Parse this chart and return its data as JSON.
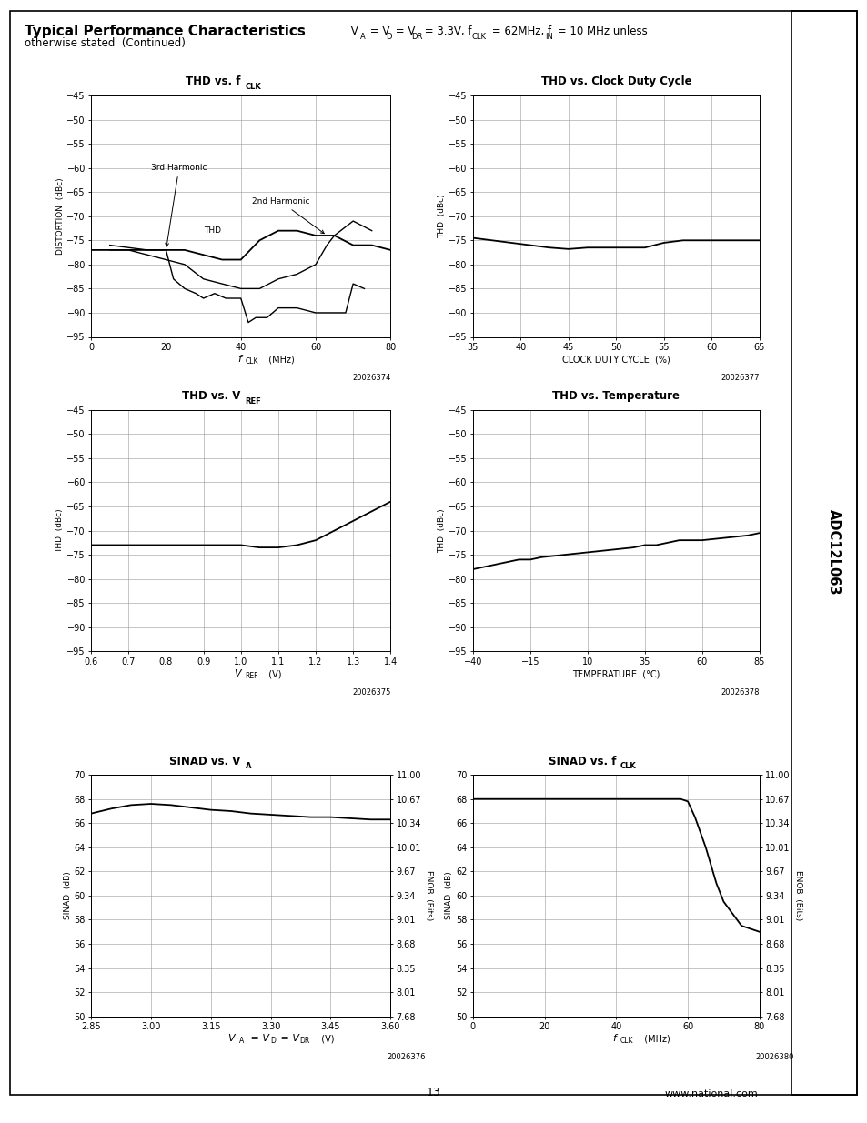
{
  "title_bold": "Typical Performance Characteristics",
  "subtitle_formula": " Vₐ = Vₑ = Vₑᴵ = 3.3V, f",
  "subtitle_clk_sub": "CLK",
  "subtitle_mid": " = 62MHz, f",
  "subtitle_in_sub": "IN",
  "subtitle_end": " = 10 MHz unless",
  "subtitle2": "otherwise stated  (Continued)",
  "page_num": "13",
  "chip_name": "ADC12L063",
  "website": "www.national.com",
  "thd_fclk": {
    "ylabel": "DISTORTION  (dBc)",
    "xmin": 0,
    "xmax": 80,
    "ymin": -95,
    "ymax": -45,
    "xticks": [
      0,
      20,
      40,
      60,
      80
    ],
    "yticks": [
      -95,
      -90,
      -85,
      -80,
      -75,
      -70,
      -65,
      -60,
      -55,
      -50,
      -45
    ],
    "thd_x": [
      0,
      5,
      10,
      15,
      20,
      25,
      30,
      35,
      40,
      45,
      50,
      55,
      60,
      65,
      70,
      75,
      80
    ],
    "thd_y": [
      -77,
      -77,
      -77,
      -77,
      -77,
      -77,
      -78,
      -79,
      -79,
      -75,
      -73,
      -73,
      -74,
      -74,
      -76,
      -76,
      -77
    ],
    "harm3_x": [
      5,
      15,
      20,
      22,
      25,
      28,
      30,
      33,
      36,
      38,
      40,
      42,
      44,
      47,
      50,
      55,
      60,
      63,
      65,
      68,
      70,
      73
    ],
    "harm3_y": [
      -76,
      -77,
      -77,
      -83,
      -85,
      -86,
      -87,
      -86,
      -87,
      -87,
      -87,
      -92,
      -91,
      -91,
      -89,
      -89,
      -90,
      -90,
      -90,
      -90,
      -84,
      -85
    ],
    "harm2_x": [
      5,
      10,
      15,
      20,
      25,
      30,
      35,
      40,
      45,
      50,
      55,
      60,
      63,
      65,
      70,
      75
    ],
    "harm2_y": [
      -77,
      -77,
      -78,
      -79,
      -80,
      -83,
      -84,
      -85,
      -85,
      -83,
      -82,
      -80,
      -76,
      -74,
      -71,
      -73
    ],
    "code": "20026374"
  },
  "thd_duty": {
    "ylabel": "THD  (dBc)",
    "xlabel": "CLOCK DUTY CYCLE  (%)",
    "xmin": 35,
    "xmax": 65,
    "ymin": -95,
    "ymax": -45,
    "xticks": [
      35,
      40,
      45,
      50,
      55,
      60,
      65
    ],
    "yticks": [
      -95,
      -90,
      -85,
      -80,
      -75,
      -70,
      -65,
      -60,
      -55,
      -50,
      -45
    ],
    "x": [
      35,
      37,
      39,
      41,
      43,
      45,
      47,
      49,
      51,
      53,
      55,
      57,
      59,
      61,
      63,
      65
    ],
    "y": [
      -74.5,
      -75.0,
      -75.5,
      -76.0,
      -76.5,
      -76.8,
      -76.5,
      -76.5,
      -76.5,
      -76.5,
      -75.5,
      -75.0,
      -75.0,
      -75.0,
      -75.0,
      -75.0
    ],
    "code": "20026377"
  },
  "thd_vref": {
    "ylabel": "THD  (dBc)",
    "xmin": 0.6,
    "xmax": 1.4,
    "ymin": -95,
    "ymax": -45,
    "xticks": [
      0.6,
      0.7,
      0.8,
      0.9,
      1.0,
      1.1,
      1.2,
      1.3,
      1.4
    ],
    "yticks": [
      -95,
      -90,
      -85,
      -80,
      -75,
      -70,
      -65,
      -60,
      -55,
      -50,
      -45
    ],
    "x": [
      0.6,
      0.65,
      0.7,
      0.75,
      0.8,
      0.85,
      0.9,
      0.95,
      1.0,
      1.05,
      1.1,
      1.15,
      1.2,
      1.25,
      1.3,
      1.35,
      1.4
    ],
    "y": [
      -73,
      -73,
      -73,
      -73,
      -73,
      -73,
      -73,
      -73,
      -73,
      -73.5,
      -73.5,
      -73,
      -72,
      -70,
      -68,
      -66,
      -64
    ],
    "code": "20026375"
  },
  "thd_temp": {
    "ylabel": "THD  (dBc)",
    "xlabel": "TEMPERATURE  (°C)",
    "xmin": -40,
    "xmax": 85,
    "ymin": -95,
    "ymax": -45,
    "xticks": [
      -40,
      -15,
      10,
      35,
      60,
      85
    ],
    "yticks": [
      -95,
      -90,
      -85,
      -80,
      -75,
      -70,
      -65,
      -60,
      -55,
      -50,
      -45
    ],
    "x": [
      -40,
      -30,
      -20,
      -15,
      -10,
      0,
      10,
      20,
      30,
      35,
      40,
      50,
      60,
      70,
      80,
      85
    ],
    "y": [
      -78,
      -77,
      -76,
      -76,
      -75.5,
      -75,
      -74.5,
      -74,
      -73.5,
      -73,
      -73,
      -72,
      -72,
      -71.5,
      -71,
      -70.5
    ],
    "code": "20026378"
  },
  "sinad_va": {
    "ylabel": "SINAD  (dB)",
    "ylabel2": "ENOB  (Bits)",
    "xmin": 2.85,
    "xmax": 3.6,
    "ymin": 50,
    "ymax": 70,
    "xticks": [
      2.85,
      3.0,
      3.15,
      3.3,
      3.45,
      3.6
    ],
    "yticks": [
      50,
      52,
      54,
      56,
      58,
      60,
      62,
      64,
      66,
      68,
      70
    ],
    "yticks2": [
      "7.68",
      "8.01",
      "8.35",
      "8.68",
      "9.01",
      "9.34",
      "9.67",
      "10.01",
      "10.34",
      "10.67",
      "11.00"
    ],
    "x": [
      2.85,
      2.9,
      2.95,
      3.0,
      3.05,
      3.1,
      3.15,
      3.2,
      3.25,
      3.3,
      3.35,
      3.4,
      3.45,
      3.5,
      3.55,
      3.6
    ],
    "y": [
      66.8,
      67.2,
      67.5,
      67.6,
      67.5,
      67.3,
      67.1,
      67.0,
      66.8,
      66.7,
      66.6,
      66.5,
      66.5,
      66.4,
      66.3,
      66.3
    ],
    "code": "20026376"
  },
  "sinad_fclk": {
    "ylabel": "SINAD  (dB)",
    "ylabel2": "ENOB  (Bits)",
    "xmin": 0,
    "xmax": 80,
    "ymin": 50,
    "ymax": 70,
    "xticks": [
      0,
      20,
      40,
      60,
      80
    ],
    "yticks": [
      50,
      52,
      54,
      56,
      58,
      60,
      62,
      64,
      66,
      68,
      70
    ],
    "yticks2": [
      "7.68",
      "8.01",
      "8.35",
      "8.68",
      "9.01",
      "9.34",
      "9.67",
      "10.01",
      "10.34",
      "10.67",
      "11.00"
    ],
    "x": [
      0,
      5,
      10,
      15,
      20,
      25,
      30,
      35,
      40,
      45,
      50,
      55,
      58,
      60,
      62,
      65,
      68,
      70,
      75,
      80
    ],
    "y": [
      68.0,
      68.0,
      68.0,
      68.0,
      68.0,
      68.0,
      68.0,
      68.0,
      68.0,
      68.0,
      68.0,
      68.0,
      68.0,
      67.8,
      66.5,
      64.0,
      61.0,
      59.5,
      57.5,
      57.0
    ],
    "code": "20026380"
  }
}
